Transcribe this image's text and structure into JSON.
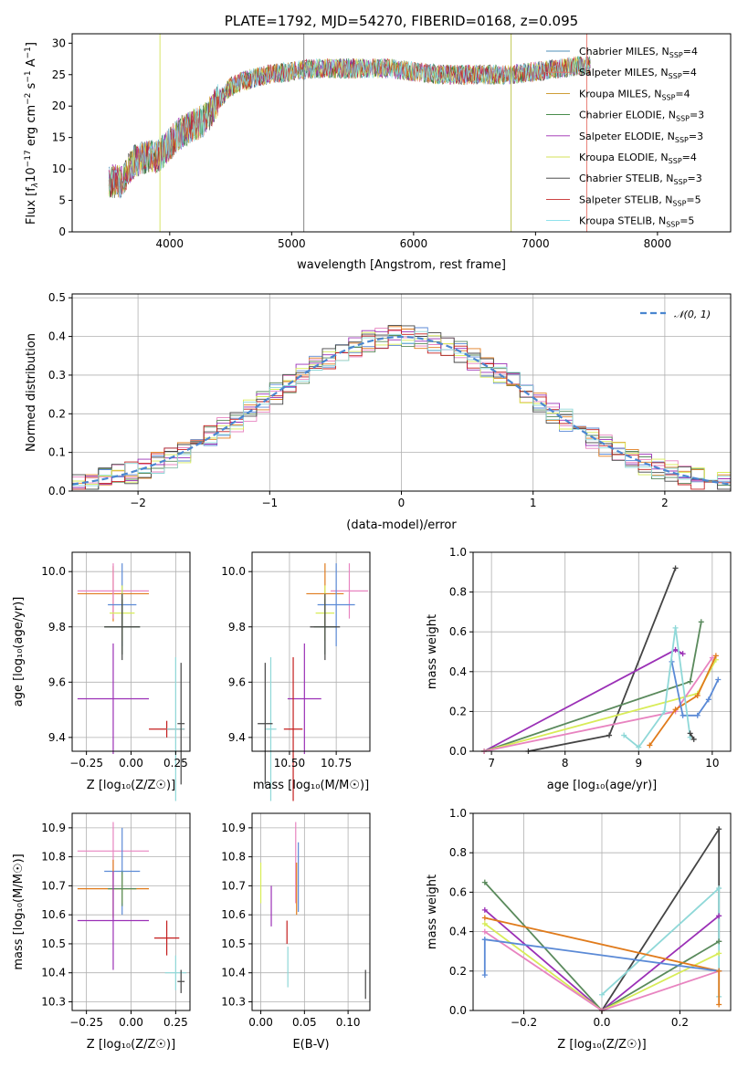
{
  "colors": {
    "Chabrier MILES": "#4f8fb8",
    "Salpeter MILES": "#e8746b",
    "Kroupa MILES": "#c8901a",
    "Chabrier ELODIE": "#2e7d32",
    "Salpeter ELODIE": "#9c27b0",
    "Kroupa ELODIE": "#d4e157",
    "Chabrier STELIB": "#333333",
    "Salpeter STELIB": "#c62828",
    "Kroupa STELIB": "#80deea"
  },
  "panel_colors": {
    "blue": "#5b8ad6",
    "orange": "#e07b1c",
    "pink": "#e884c0",
    "green": "#5a8a5c",
    "purple": "#9b30b6",
    "yellow": "#d8ec58",
    "dark": "#444444",
    "red": "#c41e1e",
    "cyan": "#8fd8d8"
  },
  "chart_data": [
    {
      "id": "spectrum",
      "type": "line",
      "title": "PLATE=1792, MJD=54270, FIBERID=0168, z=0.095",
      "xlabel": "wavelength [Angstrom, rest frame]",
      "ylabel": "Flux [f_λ 10^-17 erg cm^-2 s^-1 A^-1]",
      "xlim": [
        3200,
        8600
      ],
      "ylim": [
        0,
        31.5
      ],
      "xticks": [
        "4000",
        "5000",
        "6000",
        "7000",
        "8000"
      ],
      "yticks": [
        "0",
        "5",
        "10",
        "15",
        "20",
        "25",
        "30"
      ],
      "grid": false,
      "legend_position": "upper right",
      "continuum": {
        "x": [
          3500,
          3600,
          3700,
          3800,
          3900,
          4000,
          4100,
          4200,
          4300,
          4400,
          4500,
          4600,
          4800,
          5000,
          5200,
          5500,
          5800,
          6000,
          6200,
          6500,
          6800,
          7000,
          7200,
          7400
        ],
        "y": [
          8,
          8,
          11,
          12,
          12,
          14,
          16,
          17,
          18,
          21,
          23,
          24,
          25,
          25.5,
          26,
          26,
          26,
          25.5,
          25,
          25,
          25,
          25.5,
          26,
          26.5
        ]
      },
      "series": [
        {
          "name": "Chabrier MILES",
          "label_suffix": "=4"
        },
        {
          "name": "Salpeter MILES",
          "label_suffix": "=4"
        },
        {
          "name": "Kroupa MILES",
          "label_suffix": "=4"
        },
        {
          "name": "Chabrier ELODIE",
          "label_suffix": "=3"
        },
        {
          "name": "Salpeter ELODIE",
          "label_suffix": "=3"
        },
        {
          "name": "Kroupa ELODIE",
          "label_suffix": "=4"
        },
        {
          "name": "Chabrier STELIB",
          "label_suffix": "=3"
        },
        {
          "name": "Salpeter STELIB",
          "label_suffix": "=5"
        },
        {
          "name": "Kroupa STELIB",
          "label_suffix": "=5"
        }
      ],
      "spikes": [
        {
          "x": 5100,
          "color": "#777777"
        },
        {
          "x": 6800,
          "color": "#b8c040"
        },
        {
          "x": 7420,
          "color": "#e8746b"
        },
        {
          "x": 3920,
          "color": "#d4e157"
        }
      ]
    },
    {
      "id": "residuals",
      "type": "histogram",
      "xlabel": "(data-model)/error",
      "ylabel": "Normed distribution",
      "xlim": [
        -2.5,
        2.5
      ],
      "ylim": [
        0,
        0.51
      ],
      "xticks": [
        "-2",
        "-1",
        "0",
        "1",
        "2"
      ],
      "yticks": [
        "0.0",
        "0.1",
        "0.2",
        "0.3",
        "0.4",
        "0.5"
      ],
      "grid": true,
      "bin_width": 0.1,
      "legend_label": "N(0,1)",
      "legend_position": "upper right"
    },
    {
      "id": "age_vs_Z",
      "type": "scatter",
      "xlabel": "Z [log10(Z/Z☉)]",
      "ylabel": "age [log10(age/yr)]",
      "xlim": [
        -0.33,
        0.33
      ],
      "ylim": [
        9.35,
        10.07
      ],
      "xticks": [
        "-0.25",
        "0.00",
        "0.25"
      ],
      "yticks": [
        "9.4",
        "9.6",
        "9.8",
        "10.0"
      ],
      "points": [
        {
          "c": "orange",
          "x": -0.1,
          "xerr": 0.2,
          "y": 9.92,
          "yerr": 0.1
        },
        {
          "c": "pink",
          "x": -0.1,
          "xerr": 0.2,
          "y": 9.93,
          "yerr": 0.1
        },
        {
          "c": "blue",
          "x": -0.05,
          "xerr": 0.08,
          "y": 9.88,
          "yerr": 0.15
        },
        {
          "c": "yellow",
          "x": -0.05,
          "xerr": 0.07,
          "y": 9.85,
          "yerr": 0.1
        },
        {
          "c": "green",
          "x": -0.05,
          "xerr": 0.1,
          "y": 9.8,
          "yerr": 0.1
        },
        {
          "c": "dark",
          "x": -0.05,
          "xerr": 0.1,
          "y": 9.8,
          "yerr": 0.12
        },
        {
          "c": "purple",
          "x": -0.1,
          "xerr": 0.2,
          "y": 9.54,
          "yerr": 0.2
        },
        {
          "c": "red",
          "x": 0.2,
          "xerr": 0.1,
          "y": 9.43,
          "yerr": 0.03
        },
        {
          "c": "cyan",
          "x": 0.25,
          "xerr": 0.05,
          "y": 9.43,
          "yerr": 0.26
        },
        {
          "c": "dark",
          "x": 0.28,
          "xerr": 0.02,
          "y": 9.45,
          "yerr": 0.22
        }
      ]
    },
    {
      "id": "age_vs_mass",
      "type": "scatter",
      "xlabel": "mass [log10(M/M☉)]",
      "xlim": [
        10.3,
        10.93
      ],
      "ylim": [
        9.35,
        10.07
      ],
      "xticks": [
        "10.50",
        "10.75"
      ],
      "yticks": [
        "9.4",
        "9.6",
        "9.8",
        "10.0"
      ],
      "points": [
        {
          "c": "orange",
          "x": 10.69,
          "xerr": 0.1,
          "y": 9.92,
          "yerr": 0.11
        },
        {
          "c": "pink",
          "x": 10.82,
          "xerr": 0.1,
          "y": 9.93,
          "yerr": 0.1
        },
        {
          "c": "blue",
          "x": 10.75,
          "xerr": 0.1,
          "y": 9.88,
          "yerr": 0.15
        },
        {
          "c": "yellow",
          "x": 10.69,
          "xerr": 0.05,
          "y": 9.85,
          "yerr": 0.1
        },
        {
          "c": "green",
          "x": 10.69,
          "xerr": 0.06,
          "y": 9.8,
          "yerr": 0.1
        },
        {
          "c": "dark",
          "x": 10.69,
          "xerr": 0.08,
          "y": 9.8,
          "yerr": 0.12
        },
        {
          "c": "purple",
          "x": 10.58,
          "xerr": 0.09,
          "y": 9.54,
          "yerr": 0.2
        },
        {
          "c": "red",
          "x": 10.52,
          "xerr": 0.05,
          "y": 9.43,
          "yerr": 0.26
        },
        {
          "c": "cyan",
          "x": 10.4,
          "xerr": 0.03,
          "y": 9.43,
          "yerr": 0.26
        },
        {
          "c": "dark",
          "x": 10.37,
          "xerr": 0.04,
          "y": 9.45,
          "yerr": 0.22
        }
      ]
    },
    {
      "id": "massweight_vs_age",
      "type": "line",
      "xlabel": "age [log10(age/yr)]",
      "ylabel": "mass weight",
      "xlim": [
        6.75,
        10.25
      ],
      "ylim": [
        0,
        1
      ],
      "xticks": [
        "7",
        "8",
        "9",
        "10"
      ],
      "yticks": [
        "0.0",
        "0.2",
        "0.4",
        "0.6",
        "0.8",
        "1.0"
      ],
      "grid": true,
      "series": [
        {
          "c": "dark",
          "x": [
            7.5,
            8.6,
            9.5
          ],
          "y": [
            0.0,
            0.08,
            0.92
          ]
        },
        {
          "c": "purple",
          "x": [
            6.9,
            9.5,
            9.6
          ],
          "y": [
            0.0,
            0.51,
            0.49
          ]
        },
        {
          "c": "green",
          "x": [
            6.9,
            9.7,
            9.85
          ],
          "y": [
            0.0,
            0.35,
            0.65
          ]
        },
        {
          "c": "yellow",
          "x": [
            6.9,
            9.8,
            10.05
          ],
          "y": [
            0.0,
            0.29,
            0.46
          ]
        },
        {
          "c": "pink",
          "x": [
            6.9,
            9.5,
            10.0
          ],
          "y": [
            0.0,
            0.2,
            0.47
          ]
        },
        {
          "c": "orange",
          "x": [
            9.15,
            9.5,
            9.8,
            10.05
          ],
          "y": [
            0.03,
            0.21,
            0.28,
            0.48
          ]
        },
        {
          "c": "blue",
          "x": [
            9.45,
            9.6,
            9.8,
            9.95,
            10.08
          ],
          "y": [
            0.45,
            0.18,
            0.18,
            0.26,
            0.36
          ]
        },
        {
          "c": "cyan",
          "x": [
            8.8,
            9.0,
            9.35,
            9.5,
            9.7
          ],
          "y": [
            0.08,
            0.02,
            0.2,
            0.62,
            0.07
          ]
        },
        {
          "c": "dark",
          "x": [
            9.7,
            9.75
          ],
          "y": [
            0.09,
            0.06
          ]
        }
      ]
    },
    {
      "id": "mass_vs_Z",
      "type": "scatter",
      "xlabel": "Z [log10(Z/Z☉)]",
      "ylabel": "mass [log10(M/M☉)]",
      "xlim": [
        -0.33,
        0.33
      ],
      "ylim": [
        10.27,
        10.95
      ],
      "xticks": [
        "-0.25",
        "0.00",
        "0.25"
      ],
      "yticks": [
        "10.3",
        "10.4",
        "10.5",
        "10.6",
        "10.7",
        "10.8",
        "10.9"
      ],
      "points": [
        {
          "c": "pink",
          "x": -0.1,
          "xerr": 0.2,
          "y": 10.82,
          "yerr": 0.1
        },
        {
          "c": "blue",
          "x": -0.05,
          "xerr": 0.1,
          "y": 10.75,
          "yerr": 0.15
        },
        {
          "c": "orange",
          "x": -0.1,
          "xerr": 0.2,
          "y": 10.69,
          "yerr": 0.1
        },
        {
          "c": "yellow",
          "x": -0.05,
          "xerr": 0.08,
          "y": 10.69,
          "yerr": 0.05
        },
        {
          "c": "green",
          "x": -0.05,
          "xerr": 0.08,
          "y": 10.69,
          "yerr": 0.06
        },
        {
          "c": "purple",
          "x": -0.1,
          "xerr": 0.2,
          "y": 10.58,
          "yerr": 0.17
        },
        {
          "c": "red",
          "x": 0.2,
          "xerr": 0.07,
          "y": 10.52,
          "yerr": 0.06
        },
        {
          "c": "cyan",
          "x": 0.25,
          "xerr": 0.06,
          "y": 10.4,
          "yerr": 0.06
        },
        {
          "c": "dark",
          "x": 0.28,
          "xerr": 0.02,
          "y": 10.37,
          "yerr": 0.04
        }
      ]
    },
    {
      "id": "mass_vs_ebv",
      "type": "scatter",
      "xlabel": "E(B-V)",
      "xlim": [
        -0.01,
        0.125
      ],
      "ylim": [
        10.27,
        10.95
      ],
      "xticks": [
        "0.00",
        "0.05",
        "0.10"
      ],
      "yticks": [
        "10.3",
        "10.4",
        "10.5",
        "10.6",
        "10.7",
        "10.8",
        "10.9"
      ],
      "points": [
        {
          "c": "yellow",
          "x": 0.0,
          "y": 10.71,
          "yerr": 0.07
        },
        {
          "c": "purple",
          "x": 0.012,
          "y": 10.63,
          "yerr": 0.07
        },
        {
          "c": "red",
          "x": 0.03,
          "y": 10.54,
          "yerr": 0.04
        },
        {
          "c": "cyan",
          "x": 0.031,
          "y": 10.42,
          "yerr": 0.07
        },
        {
          "c": "pink",
          "x": 0.04,
          "y": 10.78,
          "yerr": 0.14
        },
        {
          "c": "orange",
          "x": 0.041,
          "y": 10.69,
          "yerr": 0.09
        },
        {
          "c": "blue",
          "x": 0.043,
          "y": 10.73,
          "yerr": 0.12
        },
        {
          "c": "dark",
          "x": 0.12,
          "y": 10.36,
          "yerr": 0.05
        }
      ]
    },
    {
      "id": "massweight_vs_Z",
      "type": "line",
      "xlabel": "Z [log10(Z/Z☉)]",
      "ylabel": "mass weight",
      "xlim": [
        -0.33,
        0.33
      ],
      "ylim": [
        0,
        1
      ],
      "xticks": [
        "-0.2",
        "0.0",
        "0.2"
      ],
      "yticks": [
        "0.0",
        "0.2",
        "0.4",
        "0.6",
        "0.8",
        "1.0"
      ],
      "grid": true,
      "series": [
        {
          "c": "dark",
          "x": [
            0.0,
            0.3,
            0.3
          ],
          "y": [
            0.0,
            0.92,
            0.35
          ]
        },
        {
          "c": "cyan",
          "x": [
            0.0,
            0.3,
            0.3
          ],
          "y": [
            0.08,
            0.62,
            0.07
          ]
        },
        {
          "c": "purple",
          "x": [
            -0.3,
            0.0,
            0.3
          ],
          "y": [
            0.51,
            0.0,
            0.48
          ]
        },
        {
          "c": "green",
          "x": [
            -0.3,
            0.0,
            0.3
          ],
          "y": [
            0.65,
            0.0,
            0.35
          ]
        },
        {
          "c": "yellow",
          "x": [
            -0.3,
            0.0,
            0.3
          ],
          "y": [
            0.44,
            0.0,
            0.29
          ]
        },
        {
          "c": "pink",
          "x": [
            -0.3,
            0.0,
            0.3
          ],
          "y": [
            0.4,
            0.0,
            0.2
          ]
        },
        {
          "c": "orange",
          "x": [
            -0.3,
            0.3
          ],
          "y": [
            0.47,
            0.2
          ]
        },
        {
          "c": "blue",
          "x": [
            -0.3,
            0.3
          ],
          "y": [
            0.36,
            0.2
          ]
        },
        {
          "c": "orange",
          "x": [
            0.3,
            0.3
          ],
          "y": [
            0.2,
            0.03
          ]
        },
        {
          "c": "blue",
          "x": [
            -0.3,
            -0.3
          ],
          "y": [
            0.36,
            0.18
          ]
        }
      ]
    }
  ]
}
